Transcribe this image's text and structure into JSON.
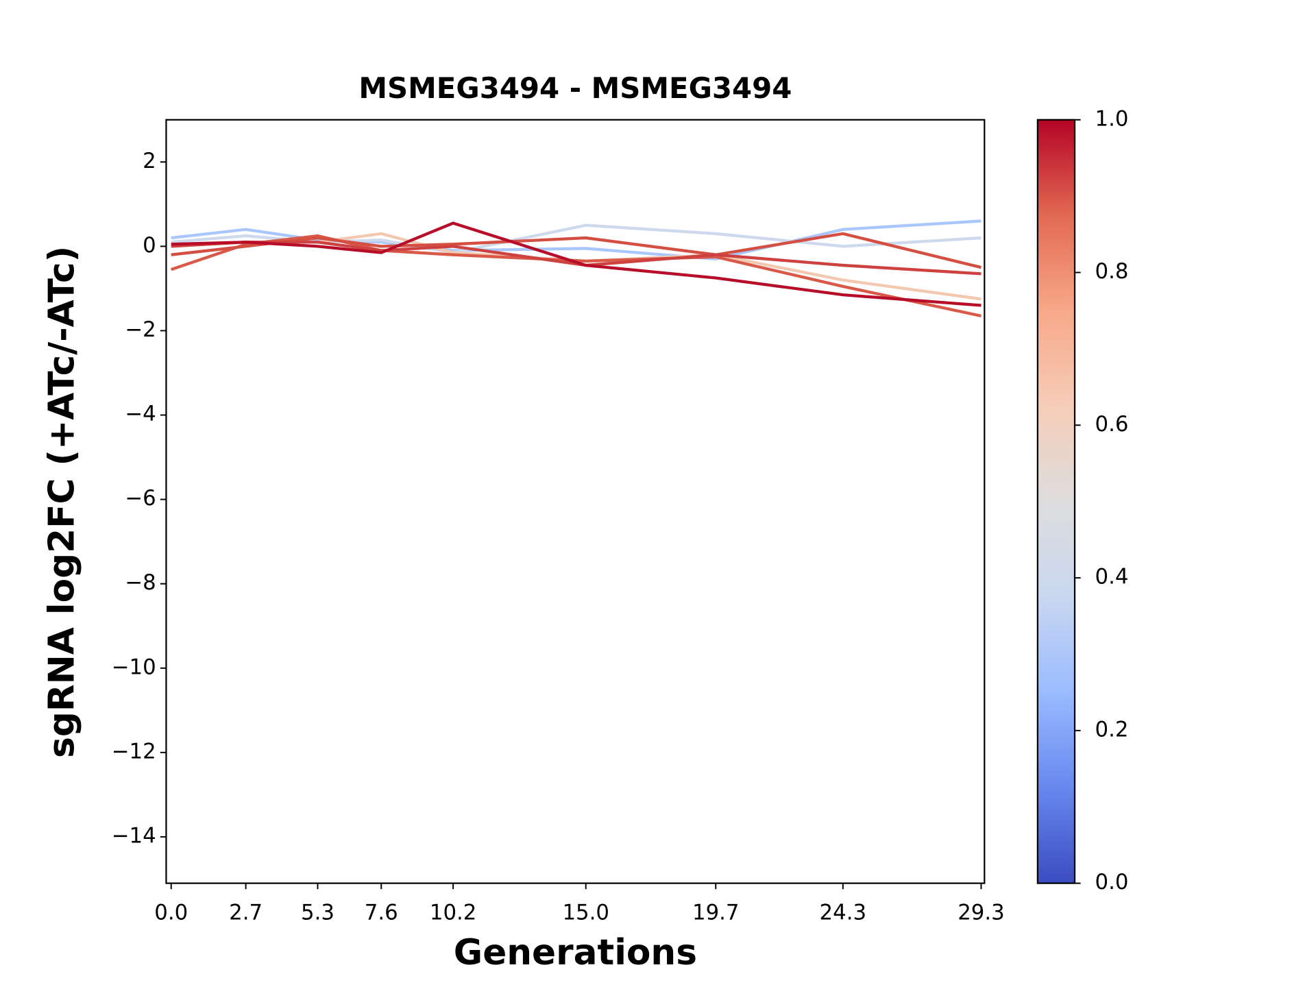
{
  "chart_data": {
    "type": "line",
    "title": "MSMEG3494 - MSMEG3494",
    "xlabel": "Generations",
    "ylabel": "sgRNA log2FC (+ATc/-ATc)",
    "x": [
      0,
      2.7,
      5.3,
      7.6,
      10.2,
      15.0,
      19.7,
      24.3,
      29.3
    ],
    "series": [
      {
        "color": "#aac7fd",
        "values": [
          0.2,
          0.4,
          0.15,
          0.1,
          -0.1,
          -0.05,
          -0.3,
          0.4,
          0.6
        ]
      },
      {
        "color": "#cdd9ec",
        "values": [
          0.1,
          0.25,
          0.1,
          0.15,
          -0.15,
          0.5,
          0.3,
          0.0,
          0.2
        ]
      },
      {
        "color": "#f2c8b0",
        "values": [
          0.0,
          0.1,
          0.1,
          0.3,
          -0.15,
          -0.35,
          -0.2,
          -0.8,
          -1.25
        ]
      },
      {
        "color": "#d95847",
        "values": [
          -0.55,
          0.05,
          0.25,
          -0.1,
          -0.2,
          -0.35,
          -0.25,
          -0.95,
          -1.65
        ]
      },
      {
        "color": "#d44e41",
        "values": [
          -0.2,
          0.0,
          0.2,
          0.0,
          0.05,
          0.2,
          -0.2,
          0.3,
          -0.5
        ]
      },
      {
        "color": "#cd4240",
        "values": [
          0.0,
          0.1,
          0.1,
          -0.1,
          0.0,
          -0.45,
          -0.2,
          -0.45,
          -0.65
        ]
      },
      {
        "color": "#b70d28",
        "values": [
          0.05,
          0.1,
          0.0,
          -0.15,
          0.55,
          -0.45,
          -0.75,
          -1.15,
          -1.4
        ]
      }
    ],
    "xlim": [
      -0.18,
      29.42
    ],
    "xticks": [
      {
        "value": 0,
        "label": "0.0"
      },
      2.7,
      5.3,
      7.6,
      10.2,
      {
        "value": 15,
        "label": "15.0"
      },
      19.7,
      24.3,
      29.3
    ],
    "ylim": [
      -15.1,
      3
    ],
    "yticks": [
      {
        "value": -14,
        "label": "−14"
      },
      {
        "value": -12,
        "label": "−12"
      },
      {
        "value": -10,
        "label": "−10"
      },
      {
        "value": -8,
        "label": "−8"
      },
      {
        "value": -6,
        "label": "−6"
      },
      {
        "value": -4,
        "label": "−4"
      },
      {
        "value": -2,
        "label": "−2"
      },
      0,
      2
    ],
    "colorbar": {
      "colormap": [
        "#3b4cc0",
        "#6788ee",
        "#9abbff",
        "#c9d7f0",
        "#dddddd",
        "#f6cdb8",
        "#f7a889",
        "#e26952",
        "#b40426"
      ],
      "lim": [
        0,
        1
      ],
      "ticks": [
        {
          "value": 0,
          "label": "0.0"
        },
        {
          "value": 0.2,
          "label": "0.2"
        },
        {
          "value": 0.4,
          "label": "0.4"
        },
        {
          "value": 0.6,
          "label": "0.6"
        },
        {
          "value": 0.8,
          "label": "0.8"
        },
        {
          "value": 1,
          "label": "1.0"
        }
      ]
    }
  }
}
